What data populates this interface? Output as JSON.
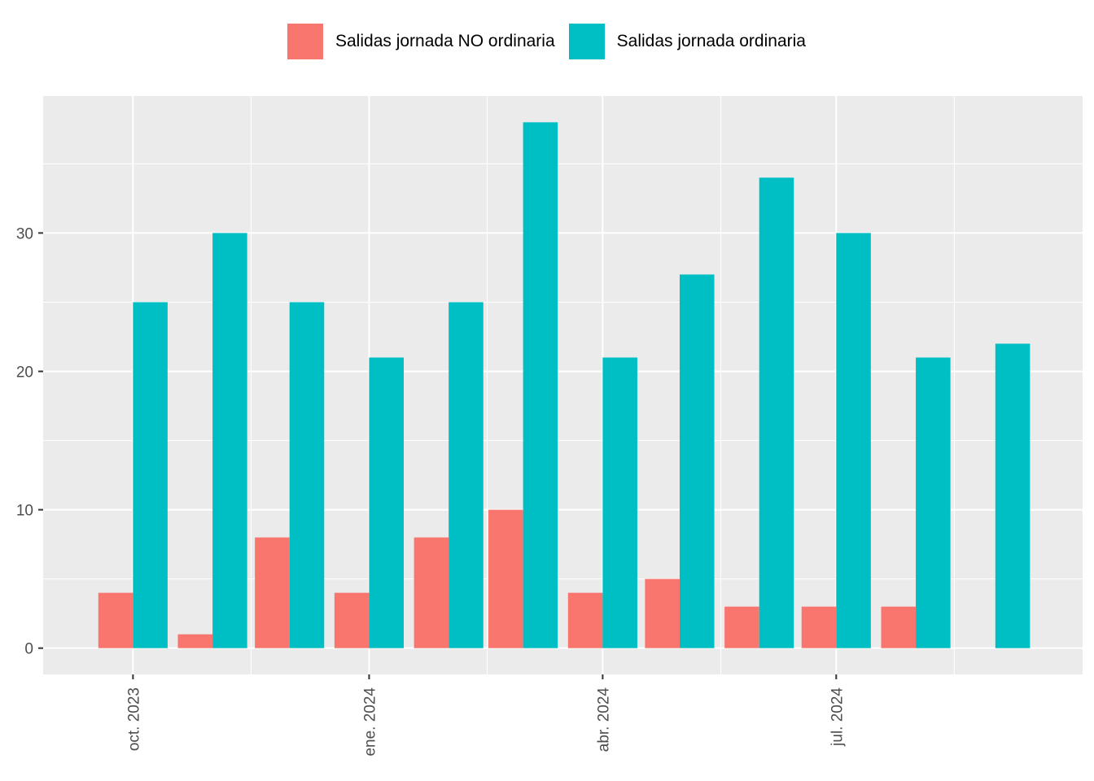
{
  "chart_data": {
    "type": "bar",
    "categories": [
      "2023-10",
      "2023-11",
      "2023-12",
      "2024-01",
      "2024-02",
      "2024-03",
      "2024-04",
      "2024-05",
      "2024-06",
      "2024-07",
      "2024-08",
      "2024-09"
    ],
    "series": [
      {
        "name": "Salidas jornada NO ordinaria",
        "color": "#F8766D",
        "values": [
          4,
          1,
          8,
          4,
          8,
          10,
          4,
          5,
          3,
          3,
          3,
          0
        ]
      },
      {
        "name": "Salidas jornada ordinaria",
        "color": "#00BFC4",
        "values": [
          25,
          30,
          25,
          21,
          25,
          38,
          21,
          27,
          34,
          30,
          21,
          22
        ]
      }
    ],
    "xticks": [
      {
        "date": "2023-10-01",
        "label": "oct. 2023"
      },
      {
        "date": "2024-01-01",
        "label": "ene. 2024"
      },
      {
        "date": "2024-04-01",
        "label": "abr. 2024"
      },
      {
        "date": "2024-07-01",
        "label": "jul. 2024"
      }
    ],
    "yticks": [
      0,
      10,
      20,
      30
    ],
    "ylim": [
      -1.9,
      39.9
    ],
    "xlim": [
      "2023-08-27",
      "2024-10-05"
    ],
    "title": "",
    "xlabel": "",
    "ylabel": "",
    "legend_position": "top",
    "grid": true,
    "panel_background": "#EBEBEB",
    "grid_color": "#FFFFFF"
  }
}
